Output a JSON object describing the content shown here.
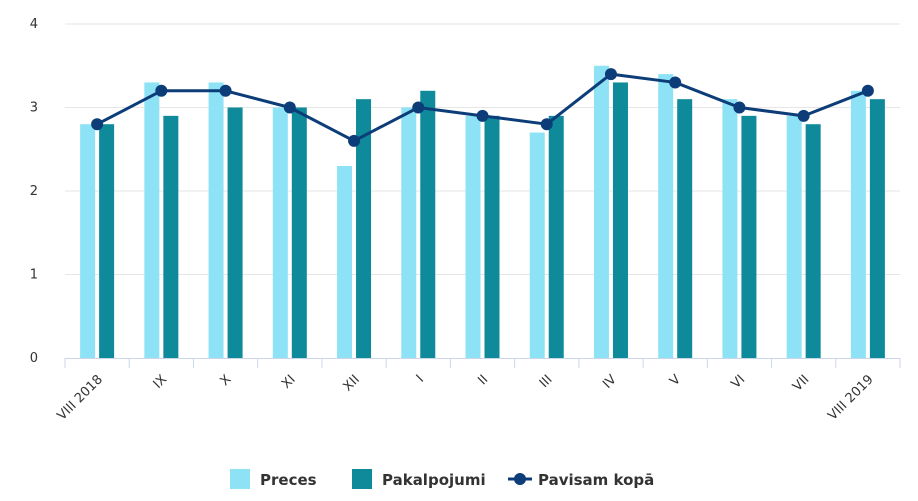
{
  "chart_data": {
    "type": "bar",
    "categories": [
      "VIII 2018",
      "IX",
      "X",
      "XI",
      "XII",
      "I",
      "II",
      "III",
      "IV",
      "V",
      "VI",
      "VII",
      "VIII 2019"
    ],
    "series": [
      {
        "name": "Preces",
        "type": "bar",
        "color": "#8de3f5",
        "values": [
          2.8,
          3.3,
          3.3,
          3.0,
          2.3,
          3.0,
          2.9,
          2.7,
          3.5,
          3.4,
          3.1,
          2.9,
          3.2
        ]
      },
      {
        "name": "Pakalpojumi",
        "type": "bar",
        "color": "#0e8a9a",
        "values": [
          2.8,
          2.9,
          3.0,
          3.0,
          3.1,
          3.2,
          2.9,
          2.9,
          3.3,
          3.1,
          2.9,
          2.8,
          3.1
        ]
      },
      {
        "name": "Pavisam kopā",
        "type": "line",
        "color": "#0d3d78",
        "values": [
          2.8,
          3.2,
          3.2,
          3.0,
          2.6,
          3.0,
          2.9,
          2.8,
          3.4,
          3.3,
          3.0,
          2.9,
          3.2
        ]
      }
    ],
    "y_ticks": [
      "0",
      "1",
      "2",
      "3",
      "4"
    ],
    "ylim": [
      0,
      4
    ],
    "grid": true,
    "legend": "bottom-center"
  }
}
